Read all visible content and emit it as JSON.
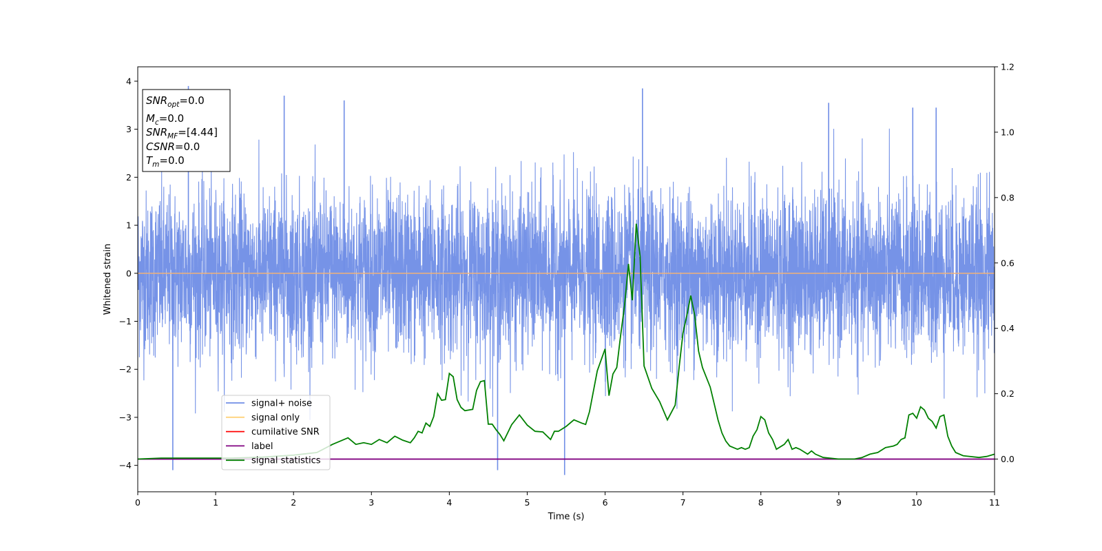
{
  "chart_data": {
    "type": "line",
    "xlabel": "Time (s)",
    "ylabel": "Whitened strain",
    "xlim": [
      0,
      11
    ],
    "ylim_left": [
      -4.55,
      4.3
    ],
    "ylim_right": [
      -0.1,
      1.2
    ],
    "x_ticks": [
      "0",
      "1",
      "2",
      "3",
      "4",
      "5",
      "6",
      "7",
      "8",
      "9",
      "10",
      "11"
    ],
    "y_ticks_left": [
      "4",
      "3",
      "2",
      "1",
      "0",
      "−1",
      "−2",
      "−3",
      "−4"
    ],
    "y_ticks_right": [
      "1.2",
      "1.0",
      "0.8",
      "0.6",
      "0.4",
      "0.2",
      "0.0"
    ],
    "grid": false,
    "legend_position": "lower-left",
    "legend": [
      {
        "name": "signal+ noise",
        "color": "#6f8de6"
      },
      {
        "name": "signal only",
        "color": "#ffd27a"
      },
      {
        "name": "cumilative SNR",
        "color": "#ff0000"
      },
      {
        "name": "label",
        "color": "#800080"
      },
      {
        "name": "signal statistics",
        "color": "#008000"
      }
    ],
    "series": [
      {
        "name": "signal+ noise",
        "axis": "left",
        "color": "#6f8de6",
        "description_range": [
          -4.2,
          3.9
        ],
        "spikes": [
          [
            0.45,
            -4.1
          ],
          [
            0.65,
            3.9
          ],
          [
            1.88,
            3.7
          ],
          [
            2.65,
            3.6
          ],
          [
            4.62,
            -4.1
          ],
          [
            5.48,
            -4.2
          ],
          [
            6.48,
            3.85
          ],
          [
            8.87,
            3.55
          ],
          [
            9.95,
            3.45
          ],
          [
            10.25,
            3.45
          ]
        ]
      },
      {
        "name": "signal only",
        "axis": "left",
        "color": "#ffd27a",
        "x": [
          0,
          11
        ],
        "y": [
          0,
          0
        ]
      },
      {
        "name": "label",
        "axis": "right",
        "color": "#800080",
        "x": [
          0,
          11
        ],
        "y": [
          0,
          0
        ]
      },
      {
        "name": "signal statistics",
        "axis": "right",
        "color": "#008000",
        "x": [
          0,
          0.3,
          0.8,
          1.2,
          1.6,
          2.0,
          2.3,
          2.5,
          2.6,
          2.7,
          2.8,
          2.9,
          3.0,
          3.1,
          3.2,
          3.3,
          3.4,
          3.5,
          3.55,
          3.6,
          3.65,
          3.7,
          3.75,
          3.8,
          3.85,
          3.9,
          3.95,
          4.0,
          4.05,
          4.1,
          4.15,
          4.2,
          4.3,
          4.35,
          4.4,
          4.45,
          4.5,
          4.55,
          4.6,
          4.65,
          4.7,
          4.8,
          4.9,
          5.0,
          5.1,
          5.2,
          5.3,
          5.35,
          5.4,
          5.5,
          5.6,
          5.7,
          5.75,
          5.8,
          5.9,
          6.0,
          6.05,
          6.1,
          6.15,
          6.2,
          6.25,
          6.3,
          6.35,
          6.4,
          6.45,
          6.5,
          6.6,
          6.7,
          6.8,
          6.9,
          6.95,
          7.0,
          7.05,
          7.1,
          7.15,
          7.2,
          7.25,
          7.35,
          7.4,
          7.45,
          7.5,
          7.55,
          7.6,
          7.7,
          7.75,
          7.8,
          7.85,
          7.9,
          7.95,
          8.0,
          8.05,
          8.1,
          8.15,
          8.2,
          8.3,
          8.35,
          8.4,
          8.45,
          8.5,
          8.6,
          8.65,
          8.7,
          8.8,
          9.0,
          9.2,
          9.3,
          9.4,
          9.5,
          9.6,
          9.7,
          9.75,
          9.8,
          9.85,
          9.9,
          9.95,
          10.0,
          10.05,
          10.1,
          10.15,
          10.2,
          10.25,
          10.3,
          10.35,
          10.4,
          10.45,
          10.5,
          10.6,
          10.8,
          10.9,
          11.0
        ],
        "y": [
          0.0,
          0.003,
          0.003,
          0.003,
          0.006,
          0.012,
          0.02,
          0.045,
          0.055,
          0.065,
          0.045,
          0.05,
          0.045,
          0.06,
          0.05,
          0.07,
          0.058,
          0.05,
          0.065,
          0.085,
          0.08,
          0.11,
          0.1,
          0.13,
          0.2,
          0.18,
          0.182,
          0.262,
          0.252,
          0.182,
          0.158,
          0.148,
          0.152,
          0.21,
          0.237,
          0.24,
          0.107,
          0.107,
          0.09,
          0.075,
          0.056,
          0.105,
          0.135,
          0.104,
          0.085,
          0.083,
          0.06,
          0.085,
          0.085,
          0.1,
          0.12,
          0.11,
          0.106,
          0.145,
          0.27,
          0.337,
          0.194,
          0.26,
          0.28,
          0.38,
          0.47,
          0.597,
          0.486,
          0.72,
          0.62,
          0.285,
          0.216,
          0.176,
          0.12,
          0.165,
          0.28,
          0.385,
          0.44,
          0.5,
          0.44,
          0.33,
          0.28,
          0.22,
          0.17,
          0.12,
          0.08,
          0.055,
          0.04,
          0.03,
          0.035,
          0.03,
          0.035,
          0.07,
          0.09,
          0.13,
          0.12,
          0.08,
          0.06,
          0.03,
          0.045,
          0.06,
          0.03,
          0.035,
          0.03,
          0.015,
          0.025,
          0.015,
          0.005,
          0.0,
          0.0,
          0.005,
          0.015,
          0.02,
          0.035,
          0.04,
          0.045,
          0.06,
          0.065,
          0.135,
          0.14,
          0.125,
          0.16,
          0.15,
          0.125,
          0.115,
          0.095,
          0.13,
          0.135,
          0.07,
          0.04,
          0.02,
          0.01,
          0.005,
          0.008,
          0.015
        ]
      }
    ],
    "annotation_box": [
      {
        "label": "SNR",
        "sub": "opt",
        "value": "=0.0"
      },
      {
        "label": "M",
        "sub": "c",
        "value": "=0.0"
      },
      {
        "label": "SNR",
        "sub": "MF",
        "value": "=[4.44]"
      },
      {
        "label": "CSNR",
        "sub": "",
        "value": "=0.0"
      },
      {
        "label": "T",
        "sub": "m",
        "value": "=0.0"
      }
    ]
  }
}
